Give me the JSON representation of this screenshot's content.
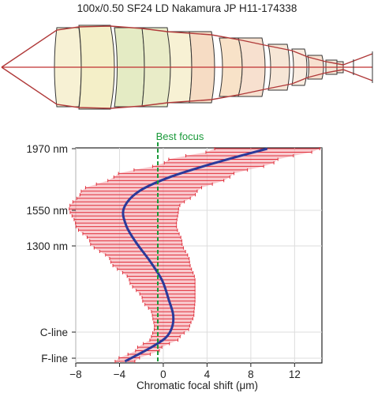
{
  "figure": {
    "title": "100x/0.50 SF24 LD Nakamura JP H11-174338"
  },
  "lens_diagram": {
    "element_count": 9,
    "colors": {
      "element_fills": [
        "#f7f1d4",
        "#f4efc8",
        "#e4ebc4",
        "#e9ecc8",
        "#f6dcc4",
        "#f8e2c8",
        "#f7e0cf",
        "#f6e6d6",
        "#f9ece0"
      ],
      "ray_color": "#b03a3a",
      "axis_color": "#c03030",
      "outline_color": "#333333"
    }
  },
  "chart_data": {
    "type": "line",
    "xlabel": "Chromatic focal shift (μm)",
    "xlim": [
      -8,
      14.5
    ],
    "x_ticks": [
      -8,
      -4,
      0,
      4,
      8,
      12
    ],
    "x_tick_labels": [
      "−8",
      "−4",
      "0",
      "4",
      "8",
      "12"
    ],
    "y_ticks": [
      {
        "label": "1970 nm"
      },
      {
        "label": "1550 nm"
      },
      {
        "label": "1300 nm"
      },
      {
        "label": "C-line"
      },
      {
        "label": "F-line"
      }
    ],
    "y_tick_wavelength_nm": [
      1970,
      1550,
      1300,
      656.3,
      486.1
    ],
    "best_focus": {
      "label": "Best focus",
      "x": -0.5,
      "color": "#1a9a3a"
    },
    "series": [
      {
        "color": "#2b3a9a",
        "points": [
          {
            "y_frac": 0.0,
            "x": 9.5
          },
          {
            "y_frac": 0.06,
            "x": 5.2
          },
          {
            "y_frac": 0.13,
            "x": 0.8
          },
          {
            "y_frac": 0.2,
            "x": -2.2
          },
          {
            "y_frac": 0.28,
            "x": -3.6
          },
          {
            "y_frac": 0.36,
            "x": -3.4
          },
          {
            "y_frac": 0.44,
            "x": -2.5
          },
          {
            "y_frac": 0.53,
            "x": -1.2
          },
          {
            "y_frac": 0.62,
            "x": -0.1
          },
          {
            "y_frac": 0.71,
            "x": 0.5
          },
          {
            "y_frac": 0.78,
            "x": 0.9
          },
          {
            "y_frac": 0.84,
            "x": 0.8
          },
          {
            "y_frac": 0.89,
            "x": 0.2
          },
          {
            "y_frac": 0.94,
            "x": -1.3
          },
          {
            "y_frac": 1.0,
            "x": -3.5
          }
        ],
        "error_halfwidth": [
          4.8,
          5.0,
          5.3,
          5.3,
          5.0,
          4.6,
          4.2,
          3.6,
          3.0,
          2.4,
          1.9,
          1.6,
          1.3,
          1.1,
          0.9
        ],
        "error_color": "#e0303c",
        "band_fill": "#f4a0a8"
      }
    ]
  }
}
